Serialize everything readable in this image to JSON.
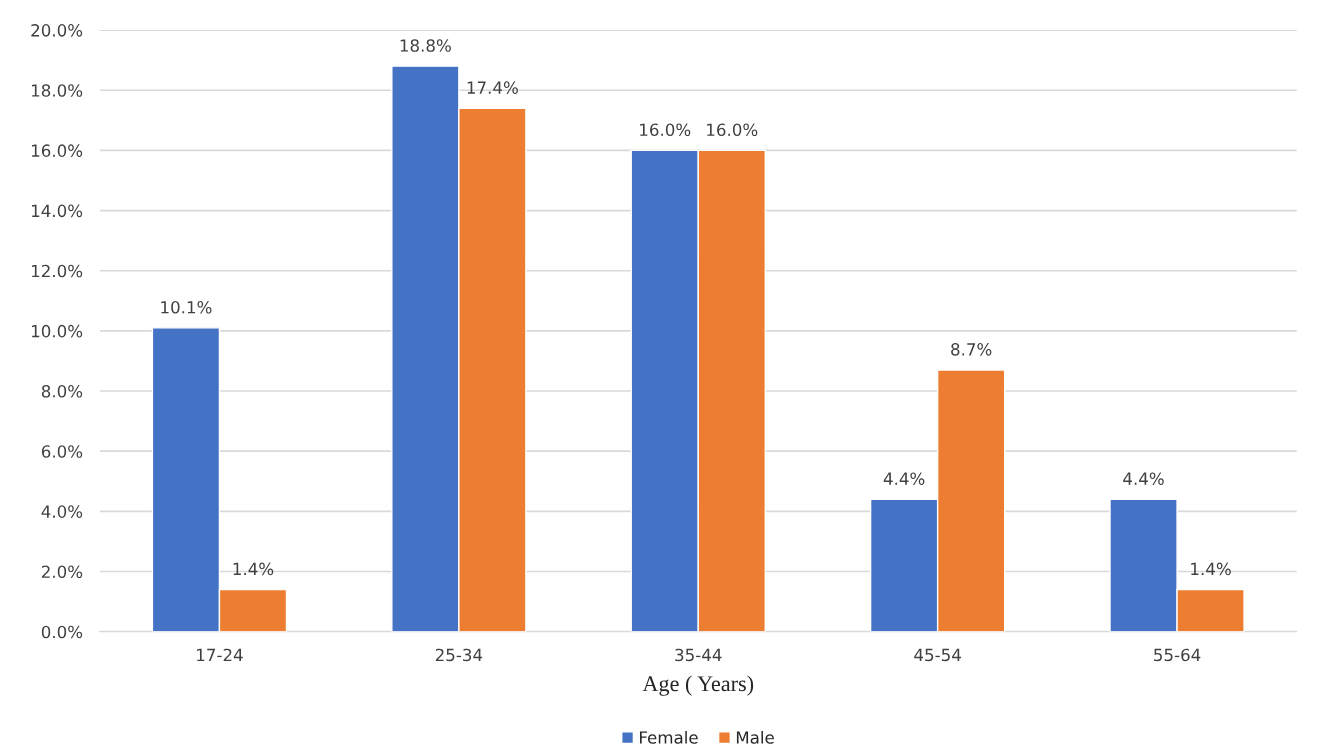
{
  "chart_data": {
    "type": "bar",
    "xlabel": "Age ( Years)",
    "categories": [
      "17-24",
      "25-34",
      "35-44",
      "45-54",
      "55-64"
    ],
    "series": [
      {
        "name": "Female",
        "color": "#4472c4",
        "values": [
          10.1,
          18.8,
          16.0,
          4.4,
          4.4
        ],
        "value_labels": [
          "10.1%",
          "18.8%",
          "16.0%",
          "4.4%",
          "4.4%"
        ]
      },
      {
        "name": "Male",
        "color": "#ed7d31",
        "values": [
          1.4,
          17.4,
          16.0,
          8.7,
          1.4
        ],
        "value_labels": [
          "1.4%",
          "17.4%",
          "16.0%",
          "8.7%",
          "1.4%"
        ]
      }
    ],
    "ylim": [
      0,
      20
    ],
    "yticks": [
      {
        "value": 0,
        "label": "0.0%"
      },
      {
        "value": 2,
        "label": "2.0%"
      },
      {
        "value": 4,
        "label": "4.0%"
      },
      {
        "value": 6,
        "label": "6.0%"
      },
      {
        "value": 8,
        "label": "8.0%"
      },
      {
        "value": 10,
        "label": "10.0%"
      },
      {
        "value": 12,
        "label": "12.0%"
      },
      {
        "value": 14,
        "label": "14.0%"
      },
      {
        "value": 16,
        "label": "16.0%"
      },
      {
        "value": 18,
        "label": "18.0%"
      },
      {
        "value": 20,
        "label": "20.0%"
      }
    ],
    "grid": "y",
    "legend": "bottom"
  }
}
